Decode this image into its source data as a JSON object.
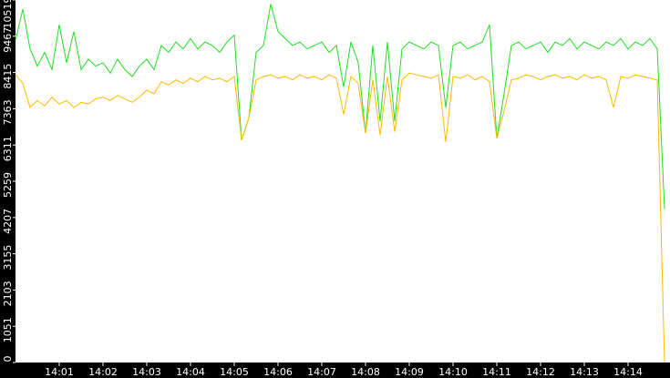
{
  "chart_data": {
    "type": "line",
    "categories": [
      null,
      null,
      null,
      null,
      null,
      null,
      "14:01",
      null,
      null,
      null,
      null,
      null,
      "14:02",
      null,
      null,
      null,
      null,
      null,
      "14:03",
      null,
      null,
      null,
      null,
      null,
      "14:04",
      null,
      null,
      null,
      null,
      null,
      "14:05",
      null,
      null,
      null,
      null,
      null,
      "14:06",
      null,
      null,
      null,
      null,
      null,
      "14:07",
      null,
      null,
      null,
      null,
      null,
      "14:08",
      null,
      null,
      null,
      null,
      null,
      "14:09",
      null,
      null,
      null,
      null,
      null,
      "14:10",
      null,
      null,
      null,
      null,
      null,
      "14:11",
      null,
      null,
      null,
      null,
      null,
      "14:12",
      null,
      null,
      null,
      null,
      null,
      "14:13",
      null,
      null,
      null,
      null,
      null,
      "14:14",
      null,
      null,
      null,
      null,
      null
    ],
    "series": [
      {
        "color": "#22dd22",
        "values": [
          9350,
          10250,
          9100,
          8600,
          9000,
          8500,
          9800,
          8700,
          9600,
          8500,
          8800,
          8600,
          8700,
          8400,
          8800,
          8500,
          8300,
          8600,
          8800,
          8500,
          9200,
          9000,
          9300,
          9100,
          9400,
          9100,
          9300,
          9200,
          9000,
          9300,
          9500,
          6450,
          7100,
          9000,
          9200,
          10400,
          9600,
          9400,
          9200,
          9300,
          9100,
          9200,
          9300,
          9000,
          9200,
          8000,
          9300,
          8700,
          6650,
          9200,
          7000,
          9300,
          7000,
          9100,
          9300,
          9200,
          9100,
          9300,
          9200,
          7400,
          9200,
          9300,
          9100,
          9200,
          9300,
          9800,
          6500,
          7800,
          9200,
          9300,
          9100,
          9200,
          9300,
          9000,
          9300,
          9200,
          9400,
          9100,
          9300,
          9200,
          9100,
          9300,
          9200,
          9400,
          9100,
          9300,
          9200,
          9400,
          9100,
          4450
        ]
      },
      {
        "color": "#ffbb00",
        "values": [
          8350,
          8100,
          7400,
          7600,
          7450,
          7700,
          7500,
          7600,
          7400,
          7550,
          7500,
          7650,
          7700,
          7600,
          7750,
          7650,
          7550,
          7700,
          7900,
          7800,
          8150,
          8050,
          8200,
          8100,
          8250,
          8150,
          8300,
          8200,
          8250,
          8150,
          8300,
          6450,
          7100,
          8200,
          8300,
          8350,
          8250,
          8300,
          8200,
          8350,
          8250,
          8300,
          8200,
          8350,
          8250,
          7200,
          8300,
          8100,
          6650,
          8200,
          6600,
          8300,
          6700,
          8200,
          8400,
          8350,
          8300,
          8250,
          8350,
          6400,
          8300,
          8250,
          8350,
          8200,
          8300,
          8150,
          6500,
          7300,
          8200,
          8250,
          8350,
          8300,
          8200,
          8300,
          8350,
          8250,
          8300,
          8200,
          8350,
          8250,
          8300,
          8200,
          7400,
          8300,
          8250,
          8350,
          8300,
          8250,
          8200,
          0
        ]
      }
    ],
    "ylim": [
      0,
      10519
    ],
    "yticks": [
      0,
      1051,
      2103,
      3155,
      4207,
      5259,
      6311,
      7363,
      8415,
      9467,
      10519
    ],
    "grid": false
  }
}
